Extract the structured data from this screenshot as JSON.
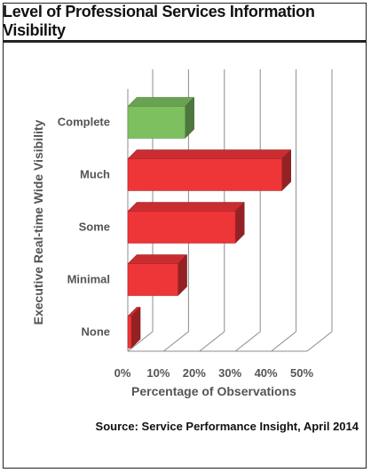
{
  "chart_data": {
    "type": "bar",
    "title": "Level of Professional Services Information Visibility",
    "ylabel": "Executive Real-time Wide Visibility",
    "xlabel": "Percentage of Observations",
    "categories": [
      "Complete",
      "Much",
      "Some",
      "Minimal",
      "None"
    ],
    "values": [
      16,
      43,
      30,
      14,
      1
    ],
    "colors": [
      "#7cc060",
      "#ee3538",
      "#ee3538",
      "#ee3538",
      "#ee3538"
    ],
    "xlim": [
      0,
      50
    ],
    "xticks": [
      "0%",
      "10%",
      "20%",
      "30%",
      "40%",
      "50%"
    ],
    "grid": true,
    "source": "Source: Service Performance Insight, April 2014"
  }
}
